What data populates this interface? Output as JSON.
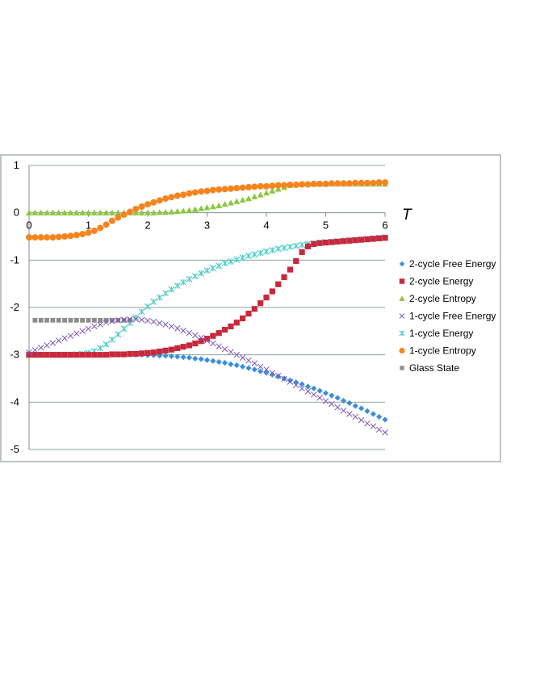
{
  "chart_data": {
    "type": "scatter",
    "title": "",
    "xlabel": "T",
    "ylabel": "",
    "xlim": [
      0,
      6
    ],
    "ylim": [
      -5,
      1
    ],
    "x_ticks": [
      "0",
      "1",
      "2",
      "3",
      "4",
      "5",
      "6"
    ],
    "y_ticks": [
      "1",
      "0",
      "-1",
      "-2",
      "-3",
      "-4",
      "-5"
    ],
    "grid": "horizontal",
    "legend_position": "right",
    "series": [
      {
        "name": "2-cycle Free Energy",
        "marker": "diamond",
        "color": "#3b8fd9",
        "x": [
          0.0,
          0.1,
          0.2,
          0.3,
          0.4,
          0.5,
          0.6,
          0.7,
          0.8,
          0.9,
          1.0,
          1.1,
          1.2,
          1.3,
          1.4,
          1.5,
          1.6,
          1.7,
          1.8,
          1.9,
          2.0,
          2.1,
          2.2,
          2.3,
          2.4,
          2.5,
          2.6,
          2.7,
          2.8,
          2.9,
          3.0,
          3.1,
          3.2,
          3.3,
          3.4,
          3.5,
          3.6,
          3.7,
          3.8,
          3.9,
          4.0,
          4.1,
          4.2,
          4.3,
          4.4,
          4.5,
          4.6,
          4.7,
          4.8,
          4.9,
          5.0,
          5.1,
          5.2,
          5.3,
          5.4,
          5.5,
          5.6,
          5.7,
          5.8,
          5.9,
          6.0
        ],
        "y": [
          -3.0,
          -3.0,
          -3.0,
          -3.0,
          -3.0,
          -3.0,
          -3.0,
          -3.0,
          -3.0,
          -3.0,
          -3.0,
          -3.0,
          -3.0,
          -3.0,
          -3.0,
          -3.0,
          -3.0,
          -3.0,
          -3.0,
          -3.0,
          -3.01,
          -3.01,
          -3.02,
          -3.02,
          -3.03,
          -3.04,
          -3.05,
          -3.06,
          -3.08,
          -3.09,
          -3.11,
          -3.13,
          -3.15,
          -3.17,
          -3.2,
          -3.22,
          -3.25,
          -3.28,
          -3.31,
          -3.35,
          -3.38,
          -3.42,
          -3.46,
          -3.5,
          -3.54,
          -3.58,
          -3.62,
          -3.67,
          -3.71,
          -3.76,
          -3.81,
          -3.86,
          -3.91,
          -3.97,
          -4.02,
          -4.08,
          -4.13,
          -4.19,
          -4.25,
          -4.31,
          -4.37
        ]
      },
      {
        "name": "2-cycle Energy",
        "marker": "square",
        "color": "#c8283d",
        "x": [
          0.0,
          0.1,
          0.2,
          0.3,
          0.4,
          0.5,
          0.6,
          0.7,
          0.8,
          0.9,
          1.0,
          1.1,
          1.2,
          1.3,
          1.4,
          1.5,
          1.6,
          1.7,
          1.8,
          1.9,
          2.0,
          2.1,
          2.2,
          2.3,
          2.4,
          2.5,
          2.6,
          2.7,
          2.8,
          2.9,
          3.0,
          3.1,
          3.2,
          3.3,
          3.4,
          3.5,
          3.6,
          3.7,
          3.8,
          3.9,
          4.0,
          4.1,
          4.2,
          4.3,
          4.4,
          4.5,
          4.6,
          4.7,
          4.8,
          4.9,
          5.0,
          5.1,
          5.2,
          5.3,
          5.4,
          5.5,
          5.6,
          5.7,
          5.8,
          5.9,
          6.0
        ],
        "y": [
          -3.0,
          -3.0,
          -3.0,
          -3.0,
          -3.0,
          -3.0,
          -3.0,
          -3.0,
          -3.0,
          -3.0,
          -3.0,
          -3.0,
          -3.0,
          -3.0,
          -2.99,
          -2.99,
          -2.99,
          -2.98,
          -2.98,
          -2.97,
          -2.96,
          -2.95,
          -2.93,
          -2.91,
          -2.89,
          -2.86,
          -2.83,
          -2.8,
          -2.76,
          -2.71,
          -2.66,
          -2.6,
          -2.54,
          -2.47,
          -2.4,
          -2.32,
          -2.23,
          -2.13,
          -2.03,
          -1.91,
          -1.79,
          -1.66,
          -1.51,
          -1.36,
          -1.2,
          -1.02,
          -0.83,
          -0.71,
          -0.66,
          -0.64,
          -0.63,
          -0.62,
          -0.61,
          -0.6,
          -0.59,
          -0.58,
          -0.57,
          -0.56,
          -0.55,
          -0.54,
          -0.53
        ]
      },
      {
        "name": "2-cycle Entropy",
        "marker": "triangle",
        "color": "#8dc63f",
        "x": [
          0.0,
          0.1,
          0.2,
          0.3,
          0.4,
          0.5,
          0.6,
          0.7,
          0.8,
          0.9,
          1.0,
          1.1,
          1.2,
          1.3,
          1.4,
          1.5,
          1.6,
          1.7,
          1.8,
          1.9,
          2.0,
          2.1,
          2.2,
          2.3,
          2.4,
          2.5,
          2.6,
          2.7,
          2.8,
          2.9,
          3.0,
          3.1,
          3.2,
          3.3,
          3.4,
          3.5,
          3.6,
          3.7,
          3.8,
          3.9,
          4.0,
          4.1,
          4.2,
          4.3,
          4.4,
          4.5,
          4.6,
          4.7,
          4.8,
          4.9,
          5.0,
          5.1,
          5.2,
          5.3,
          5.4,
          5.5,
          5.6,
          5.7,
          5.8,
          5.9,
          6.0
        ],
        "y": [
          0.0,
          0.0,
          0.0,
          0.0,
          0.0,
          0.0,
          0.0,
          0.0,
          0.0,
          0.0,
          0.0,
          0.0,
          0.0,
          0.0,
          0.0,
          0.0,
          0.0,
          0.0,
          0.0,
          0.0,
          0.0,
          0.0,
          0.01,
          0.01,
          0.02,
          0.03,
          0.04,
          0.05,
          0.07,
          0.09,
          0.11,
          0.13,
          0.15,
          0.18,
          0.21,
          0.24,
          0.27,
          0.3,
          0.34,
          0.38,
          0.42,
          0.46,
          0.5,
          0.54,
          0.58,
          0.6,
          0.61,
          0.61,
          0.61,
          0.61,
          0.61,
          0.61,
          0.61,
          0.61,
          0.61,
          0.61,
          0.61,
          0.61,
          0.61,
          0.61,
          0.61
        ]
      },
      {
        "name": "1-cycle Free Energy",
        "marker": "x",
        "color": "#7b56b3",
        "x": [
          0.0,
          0.1,
          0.2,
          0.3,
          0.4,
          0.5,
          0.6,
          0.7,
          0.8,
          0.9,
          1.0,
          1.1,
          1.2,
          1.3,
          1.4,
          1.5,
          1.6,
          1.7,
          1.8,
          1.9,
          2.0,
          2.1,
          2.2,
          2.3,
          2.4,
          2.5,
          2.6,
          2.7,
          2.8,
          2.9,
          3.0,
          3.1,
          3.2,
          3.3,
          3.4,
          3.5,
          3.6,
          3.7,
          3.8,
          3.9,
          4.0,
          4.1,
          4.2,
          4.3,
          4.4,
          4.5,
          4.6,
          4.7,
          4.8,
          4.9,
          5.0,
          5.1,
          5.2,
          5.3,
          5.4,
          5.5,
          5.6,
          5.7,
          5.8,
          5.9,
          6.0
        ],
        "y": [
          -2.95,
          -2.9,
          -2.85,
          -2.8,
          -2.75,
          -2.7,
          -2.65,
          -2.6,
          -2.55,
          -2.5,
          -2.45,
          -2.4,
          -2.36,
          -2.32,
          -2.29,
          -2.27,
          -2.26,
          -2.25,
          -2.25,
          -2.26,
          -2.28,
          -2.3,
          -2.33,
          -2.36,
          -2.4,
          -2.44,
          -2.49,
          -2.54,
          -2.59,
          -2.64,
          -2.7,
          -2.76,
          -2.82,
          -2.88,
          -2.94,
          -3.0,
          -3.06,
          -3.12,
          -3.18,
          -3.25,
          -3.31,
          -3.38,
          -3.44,
          -3.51,
          -3.57,
          -3.64,
          -3.71,
          -3.77,
          -3.84,
          -3.91,
          -3.98,
          -4.04,
          -4.11,
          -4.18,
          -4.25,
          -4.31,
          -4.38,
          -4.45,
          -4.51,
          -4.58,
          -4.64
        ]
      },
      {
        "name": "1-cycle Energy",
        "marker": "star",
        "color": "#4ecdc4",
        "x": [
          0.0,
          0.1,
          0.2,
          0.3,
          0.4,
          0.5,
          0.6,
          0.7,
          0.8,
          0.9,
          1.0,
          1.1,
          1.2,
          1.3,
          1.4,
          1.5,
          1.6,
          1.7,
          1.8,
          1.9,
          2.0,
          2.1,
          2.2,
          2.3,
          2.4,
          2.5,
          2.6,
          2.7,
          2.8,
          2.9,
          3.0,
          3.1,
          3.2,
          3.3,
          3.4,
          3.5,
          3.6,
          3.7,
          3.8,
          3.9,
          4.0,
          4.1,
          4.2,
          4.3,
          4.4,
          4.5,
          4.6,
          4.7,
          4.8,
          4.9,
          5.0,
          5.1,
          5.2,
          5.3,
          5.4,
          5.5,
          5.6,
          5.7,
          5.8,
          5.9,
          6.0
        ],
        "y": [
          -3.0,
          -3.0,
          -3.0,
          -3.0,
          -3.0,
          -3.0,
          -3.0,
          -3.0,
          -2.99,
          -2.98,
          -2.96,
          -2.92,
          -2.86,
          -2.78,
          -2.68,
          -2.57,
          -2.45,
          -2.33,
          -2.21,
          -2.09,
          -1.98,
          -1.88,
          -1.79,
          -1.7,
          -1.62,
          -1.54,
          -1.47,
          -1.4,
          -1.34,
          -1.28,
          -1.22,
          -1.17,
          -1.12,
          -1.07,
          -1.03,
          -0.99,
          -0.95,
          -0.91,
          -0.88,
          -0.85,
          -0.82,
          -0.79,
          -0.76,
          -0.74,
          -0.72,
          -0.7,
          -0.68,
          -0.66,
          -0.64,
          -0.63,
          -0.62,
          -0.61,
          -0.6,
          -0.59,
          -0.58,
          -0.57,
          -0.56,
          -0.55,
          -0.54,
          -0.53,
          -0.52
        ]
      },
      {
        "name": "1-cycle Entropy",
        "marker": "circle",
        "color": "#f5841f",
        "x": [
          0.0,
          0.1,
          0.2,
          0.3,
          0.4,
          0.5,
          0.6,
          0.7,
          0.8,
          0.9,
          1.0,
          1.1,
          1.2,
          1.3,
          1.4,
          1.5,
          1.6,
          1.7,
          1.8,
          1.9,
          2.0,
          2.1,
          2.2,
          2.3,
          2.4,
          2.5,
          2.6,
          2.7,
          2.8,
          2.9,
          3.0,
          3.1,
          3.2,
          3.3,
          3.4,
          3.5,
          3.6,
          3.7,
          3.8,
          3.9,
          4.0,
          4.1,
          4.2,
          4.3,
          4.4,
          4.5,
          4.6,
          4.7,
          4.8,
          4.9,
          5.0,
          5.1,
          5.2,
          5.3,
          5.4,
          5.5,
          5.6,
          5.7,
          5.8,
          5.9,
          6.0
        ],
        "y": [
          -0.52,
          -0.52,
          -0.52,
          -0.52,
          -0.52,
          -0.51,
          -0.5,
          -0.49,
          -0.47,
          -0.45,
          -0.42,
          -0.38,
          -0.32,
          -0.25,
          -0.17,
          -0.1,
          -0.04,
          0.02,
          0.08,
          0.13,
          0.18,
          0.22,
          0.26,
          0.3,
          0.33,
          0.36,
          0.38,
          0.41,
          0.43,
          0.45,
          0.46,
          0.48,
          0.49,
          0.5,
          0.51,
          0.52,
          0.53,
          0.54,
          0.55,
          0.56,
          0.56,
          0.57,
          0.58,
          0.58,
          0.59,
          0.59,
          0.6,
          0.6,
          0.61,
          0.61,
          0.61,
          0.62,
          0.62,
          0.62,
          0.62,
          0.63,
          0.63,
          0.63,
          0.63,
          0.64,
          0.64
        ]
      },
      {
        "name": "Glass State",
        "marker": "square-small",
        "color": "#8c8c8c",
        "x": [
          0.1,
          0.2,
          0.3,
          0.4,
          0.5,
          0.6,
          0.7,
          0.8,
          0.9,
          1.0,
          1.1,
          1.2,
          1.3,
          1.4,
          1.5,
          1.6,
          1.7
        ],
        "y": [
          -2.27,
          -2.27,
          -2.27,
          -2.27,
          -2.27,
          -2.27,
          -2.27,
          -2.27,
          -2.27,
          -2.27,
          -2.27,
          -2.27,
          -2.27,
          -2.27,
          -2.27,
          -2.27,
          -2.27
        ]
      }
    ]
  }
}
